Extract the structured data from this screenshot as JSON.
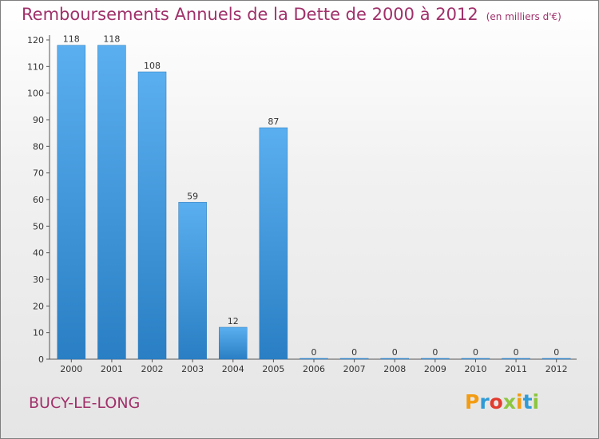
{
  "chart_data": {
    "type": "bar",
    "title": "Remboursements Annuels de la Dette de 2000 à 2012",
    "subtitle": "(en milliers d'€)",
    "categories": [
      "2000",
      "2001",
      "2002",
      "2003",
      "2004",
      "2005",
      "2006",
      "2007",
      "2008",
      "2009",
      "2010",
      "2011",
      "2012"
    ],
    "values": [
      118,
      118,
      108,
      59,
      12,
      87,
      0,
      0,
      0,
      0,
      0,
      0,
      0
    ],
    "ylim": [
      0,
      120
    ],
    "yticks": [
      0,
      10,
      20,
      30,
      40,
      50,
      60,
      70,
      80,
      90,
      100,
      110,
      120
    ],
    "grid": false,
    "legend": "none"
  },
  "location": "BUCY-LE-LONG",
  "brand": {
    "letters": [
      "P",
      "r",
      "o",
      "x",
      "i",
      "t",
      "i"
    ],
    "colors": [
      "#f39c12",
      "#2f9bd6",
      "#e23b2e",
      "#8cc63f",
      "#f39c12",
      "#2f9bd6",
      "#8cc63f"
    ]
  },
  "colors": {
    "title": "#a0306a",
    "bar_light": "#5aaff0",
    "bar_dark": "#2a7fc4"
  }
}
